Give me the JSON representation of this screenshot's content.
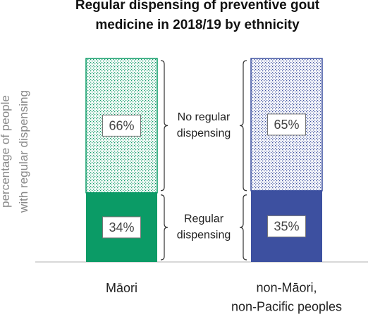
{
  "chart_data": {
    "type": "stacked_bar",
    "title": "Regular dispensing of preventive gout\nmedicine in 2018/19 by ethnicity",
    "ylabel": "percentage of people\nwith regular dispensing",
    "categories": [
      "Māori",
      "non-Māori,\nnon-Pacific peoples"
    ],
    "ylim": [
      0,
      100
    ],
    "series": [
      {
        "name": "Regular\ndispensing",
        "colors": [
          "#0b9b66",
          "#3d50a0"
        ],
        "pattern": false,
        "values": [
          34,
          35
        ],
        "value_labels": [
          "34%",
          "35%"
        ]
      },
      {
        "name": "No regular\ndispensing",
        "colors": [
          "#0b9b66",
          "#3d50a0"
        ],
        "pattern": true,
        "values": [
          66,
          65
        ],
        "value_labels": [
          "66%",
          "65%"
        ]
      }
    ]
  }
}
